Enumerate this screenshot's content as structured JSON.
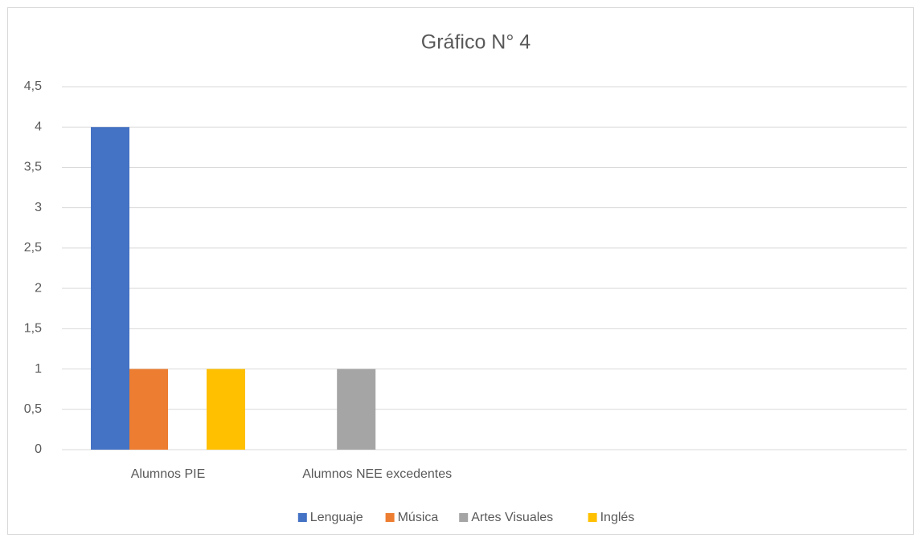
{
  "chart_data": {
    "type": "bar",
    "title": "Gráfico N° 4",
    "categories": [
      "Alumnos PIE",
      "Alumnos NEE excedentes",
      null,
      null,
      null
    ],
    "series": [
      {
        "name": "Lenguaje",
        "color": "#4472c4",
        "values": [
          4,
          0,
          null,
          null,
          null
        ]
      },
      {
        "name": "Música",
        "color": "#ed7d31",
        "values": [
          1,
          0,
          null,
          null,
          null
        ]
      },
      {
        "name": "Artes Visuales",
        "color": "#a5a5a5",
        "values": [
          0,
          1,
          null,
          null,
          null
        ]
      },
      {
        "name": "Inglés",
        "color": "#ffc000",
        "values": [
          1,
          0,
          null,
          null,
          null
        ]
      }
    ],
    "ylim": [
      0,
      4.5
    ],
    "yticks": [
      0,
      {
        "value": 0.5,
        "label": "0,5"
      },
      1,
      {
        "value": 1.5,
        "label": "1,5"
      },
      2,
      {
        "value": 2.5,
        "label": "2,5"
      },
      3,
      {
        "value": 3.5,
        "label": "3,5"
      },
      4,
      {
        "value": 4.5,
        "label": "4,5"
      }
    ],
    "grid": true,
    "legend": "bottom"
  }
}
